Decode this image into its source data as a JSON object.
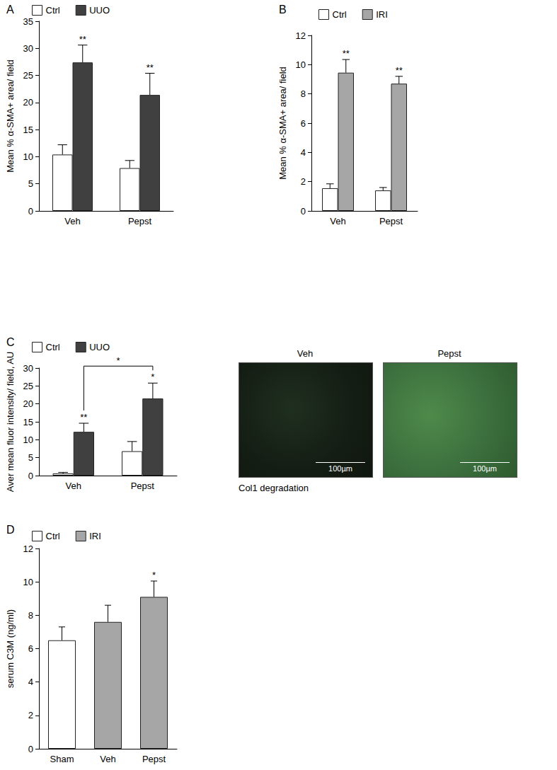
{
  "chart_data": [
    {
      "type": "bar",
      "title": "A",
      "categories": [
        "Veh",
        "Pepst"
      ],
      "y_label": "Mean % α-SMA+ area/ field",
      "ylim": [
        0,
        35
      ],
      "yticks": [
        0,
        5,
        10,
        15,
        20,
        25,
        30,
        35
      ],
      "grid": false,
      "legend": "top-left",
      "series": [
        {
          "name": "Ctrl",
          "color": "#ffffff",
          "values": [
            10.4,
            7.9
          ],
          "errors": [
            1.8,
            1.4
          ],
          "significance": [
            null,
            null
          ]
        },
        {
          "name": "UUO",
          "color": "#404040",
          "values": [
            27.4,
            21.4
          ],
          "errors": [
            3.2,
            4.0
          ],
          "significance": [
            "**",
            "**"
          ]
        }
      ]
    },
    {
      "type": "bar",
      "title": "B",
      "categories": [
        "Veh",
        "Pepst"
      ],
      "y_label": "Mean % α-SMA+ area/ field",
      "ylim": [
        0,
        12
      ],
      "yticks": [
        0,
        2,
        4,
        6,
        8,
        10,
        12
      ],
      "grid": false,
      "legend": "top-left",
      "series": [
        {
          "name": "Ctrl",
          "color": "#ffffff",
          "values": [
            1.55,
            1.4
          ],
          "errors": [
            0.3,
            0.2
          ],
          "significance": [
            null,
            null
          ]
        },
        {
          "name": "IRI",
          "color": "#a6a6a6",
          "values": [
            9.45,
            8.7
          ],
          "errors": [
            0.9,
            0.5
          ],
          "significance": [
            "**",
            "**"
          ]
        }
      ]
    },
    {
      "type": "bar",
      "title": "C",
      "categories": [
        "Veh",
        "Pepst"
      ],
      "y_label": "Aver mean fluor intensity/ field, AU",
      "ylim": [
        0,
        30
      ],
      "yticks": [
        0,
        5,
        10,
        15,
        20,
        25,
        30
      ],
      "grid": false,
      "legend": "top-left",
      "series": [
        {
          "name": "Ctrl",
          "color": "#ffffff",
          "values": [
            0.6,
            6.8
          ],
          "errors": [
            0.3,
            2.7
          ],
          "significance": [
            null,
            null
          ]
        },
        {
          "name": "UUO",
          "color": "#404040",
          "values": [
            12.2,
            21.5
          ],
          "errors": [
            2.4,
            4.3
          ],
          "significance": [
            "**",
            "*"
          ]
        }
      ],
      "comparisons": [
        {
          "series": "UUO",
          "categories": [
            "Veh",
            "Pepst"
          ],
          "label": "*"
        }
      ]
    },
    {
      "type": "bar",
      "title": "D",
      "categories": [
        "Sham",
        "Veh",
        "Pepst"
      ],
      "y_label": "serum C3M (ng/ml)",
      "ylim": [
        0,
        12
      ],
      "yticks": [
        0,
        2,
        4,
        6,
        8,
        10,
        12
      ],
      "grid": false,
      "legend": "top-left",
      "series": [
        {
          "name": "Ctrl",
          "color": "#ffffff",
          "values": [
            6.5,
            null,
            null
          ],
          "errors": [
            0.8,
            null,
            null
          ],
          "significance": [
            null,
            null,
            null
          ]
        },
        {
          "name": "IRI",
          "color": "#a6a6a6",
          "values": [
            null,
            7.6,
            9.1
          ],
          "errors": [
            null,
            1.0,
            0.95
          ],
          "significance": [
            null,
            null,
            "*"
          ]
        }
      ]
    }
  ],
  "micrographs": {
    "caption": "Col1 degradation",
    "panels": [
      {
        "label": "Veh",
        "scale_bar": "100µm"
      },
      {
        "label": "Pepst",
        "scale_bar": "100µm"
      }
    ]
  }
}
